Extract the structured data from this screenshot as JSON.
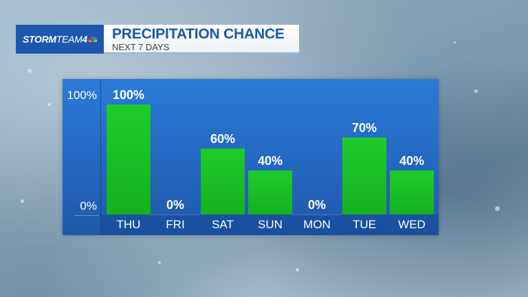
{
  "header": {
    "logo": {
      "bold": "STORM",
      "light": "TEAM",
      "num": "4",
      "icon": "nbc-peacock-icon"
    },
    "title": "PRECIPITATION CHANCE",
    "subtitle": "NEXT 7 DAYS"
  },
  "colors": {
    "panel": "#2367bf",
    "bar": "#1bc426",
    "logo_bg": "#1d58ae",
    "title": "#1c57a8"
  },
  "chart_data": {
    "type": "bar",
    "title": "PRECIPITATION CHANCE",
    "subtitle": "NEXT 7 DAYS",
    "categories": [
      "THU",
      "FRI",
      "SAT",
      "SUN",
      "MON",
      "TUE",
      "WED"
    ],
    "values": [
      100,
      0,
      60,
      40,
      0,
      70,
      40
    ],
    "value_labels": [
      "100%",
      "0%",
      "60%",
      "40%",
      "0%",
      "70%",
      "40%"
    ],
    "ylabel": "",
    "xlabel": "",
    "ylim": [
      0,
      100
    ],
    "yticks": [
      "0%",
      "100%"
    ],
    "grid": false,
    "legend": null
  }
}
